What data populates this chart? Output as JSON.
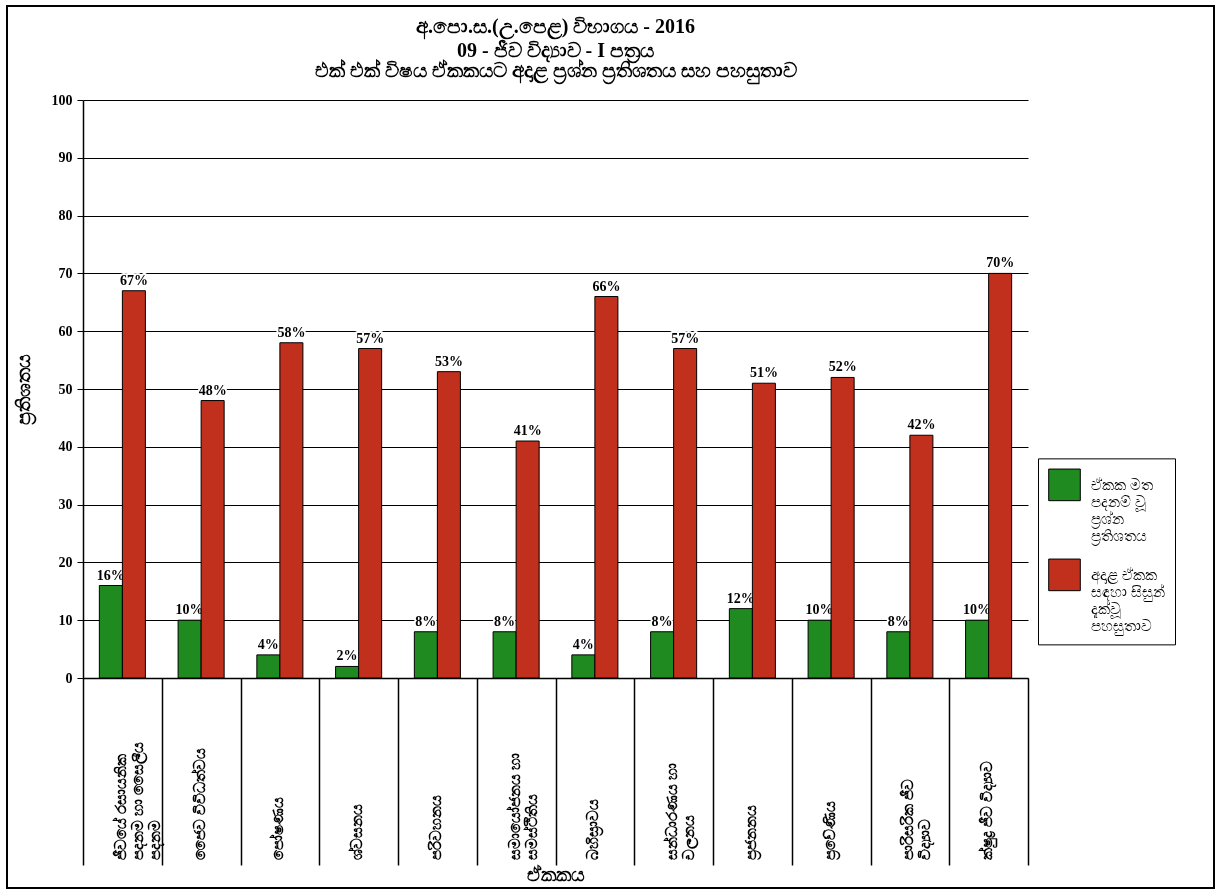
{
  "chart_data": {
    "type": "bar",
    "title": "අ.පො.ස.(උ.පෙළ) විභාගය - 2016\n09 - ජීව විද්‍යාව - I  පත්‍රය",
    "subtitle": "එක් එක් විෂය ඒකකයට අදාළ ප්‍රශ්න ප්‍රතිශතය සහ පහසුතාව",
    "xlabel": "ඒකකය",
    "ylabel": "ප්‍රතිශතය",
    "categories": [
      "ජීවයේ රසායනික පදනම හා සෛලීය පදනම",
      "ජෛව විවිධත්වය",
      "පෝෂණය",
      "ශ්වසනය",
      "පරිවහනය",
      "සමායෝජනය හා සමස්ථිතිය",
      "බහිස්‍රාවය",
      "සන්ධාරණය හා චලනය",
      "ප්‍රජනනය",
      "ප්‍රවේණිය",
      "පාරිසරික ජීව විද්‍යාව",
      "ක්ෂුද්‍ර ජීව විද්‍යාව"
    ],
    "series": [
      {
        "name": "ඒකක මත පදනම් වූ ප්‍රශ්න ප්‍රතිශතය",
        "color": "#1f8a1f",
        "values": [
          16,
          10,
          4,
          2,
          8,
          8,
          4,
          8,
          12,
          10,
          8,
          10
        ],
        "value_labels": [
          "16%",
          "10%",
          "4%",
          "2%",
          "8%",
          "8%",
          "4%",
          "8%",
          "12%",
          "10%",
          "8%",
          "10%"
        ]
      },
      {
        "name": "අදාළ ඒකක සඳහා සිසුන් දැක්වූ පහසුතාව",
        "color": "#c0301c",
        "values": [
          67,
          48,
          58,
          57,
          53,
          41,
          66,
          57,
          51,
          52,
          42,
          70
        ],
        "value_labels": [
          "67%",
          "48%",
          "58%",
          "57%",
          "53%",
          "41%",
          "66%",
          "57%",
          "51%",
          "52%",
          "42%",
          "70%"
        ]
      }
    ],
    "ylim": [
      0,
      100
    ],
    "yticks": [
      0,
      10,
      20,
      30,
      40,
      50,
      60,
      70,
      80,
      90,
      100
    ],
    "grid": "y",
    "legend": "right"
  }
}
